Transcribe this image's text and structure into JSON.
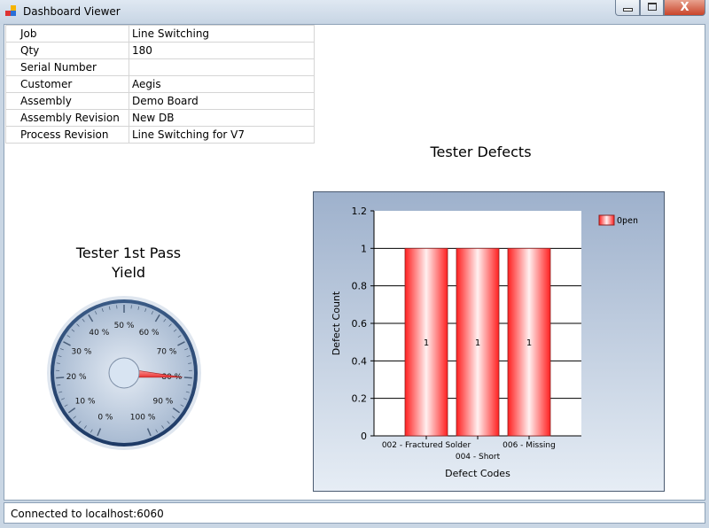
{
  "window": {
    "title": "Dashboard Viewer",
    "close_glyph": "X"
  },
  "info": [
    {
      "label": "Job",
      "value": "Line Switching"
    },
    {
      "label": "Qty",
      "value": "180"
    },
    {
      "label": "Serial Number",
      "value": ""
    },
    {
      "label": "Customer",
      "value": "Aegis"
    },
    {
      "label": "Assembly",
      "value": "Demo Board"
    },
    {
      "label": "Assembly Revision",
      "value": "New DB"
    },
    {
      "label": "Process Revision",
      "value": "Line Switching for V7"
    }
  ],
  "gauge": {
    "title_line1": "Tester 1st Pass",
    "title_line2": "Yield",
    "value_percent": 80,
    "ticks": [
      "0 %",
      "10 %",
      "20 %",
      "30 %",
      "40 %",
      "50 %",
      "60 %",
      "70 %",
      "80 %",
      "90 %",
      "100 %"
    ],
    "needle_color": "#e83030"
  },
  "chart_data": {
    "type": "bar",
    "title": "Tester Defects",
    "xlabel": "Defect Codes",
    "ylabel": "Defect Count",
    "categories": [
      "002 - Fractured Solder",
      "004 - Short",
      "006 - Missing"
    ],
    "series": [
      {
        "name": "Open",
        "values": [
          1,
          1,
          1
        ]
      }
    ],
    "ylim": [
      0,
      1.2
    ],
    "yticks": [
      "0",
      "0.2",
      "0.4",
      "0.6",
      "0.8",
      "1",
      "1.2"
    ],
    "data_labels": [
      "1",
      "1",
      "1"
    ],
    "grid": true,
    "legend": "top-right",
    "bar_color": "#ff2020"
  },
  "status": {
    "text": "Connected to localhost:6060"
  }
}
